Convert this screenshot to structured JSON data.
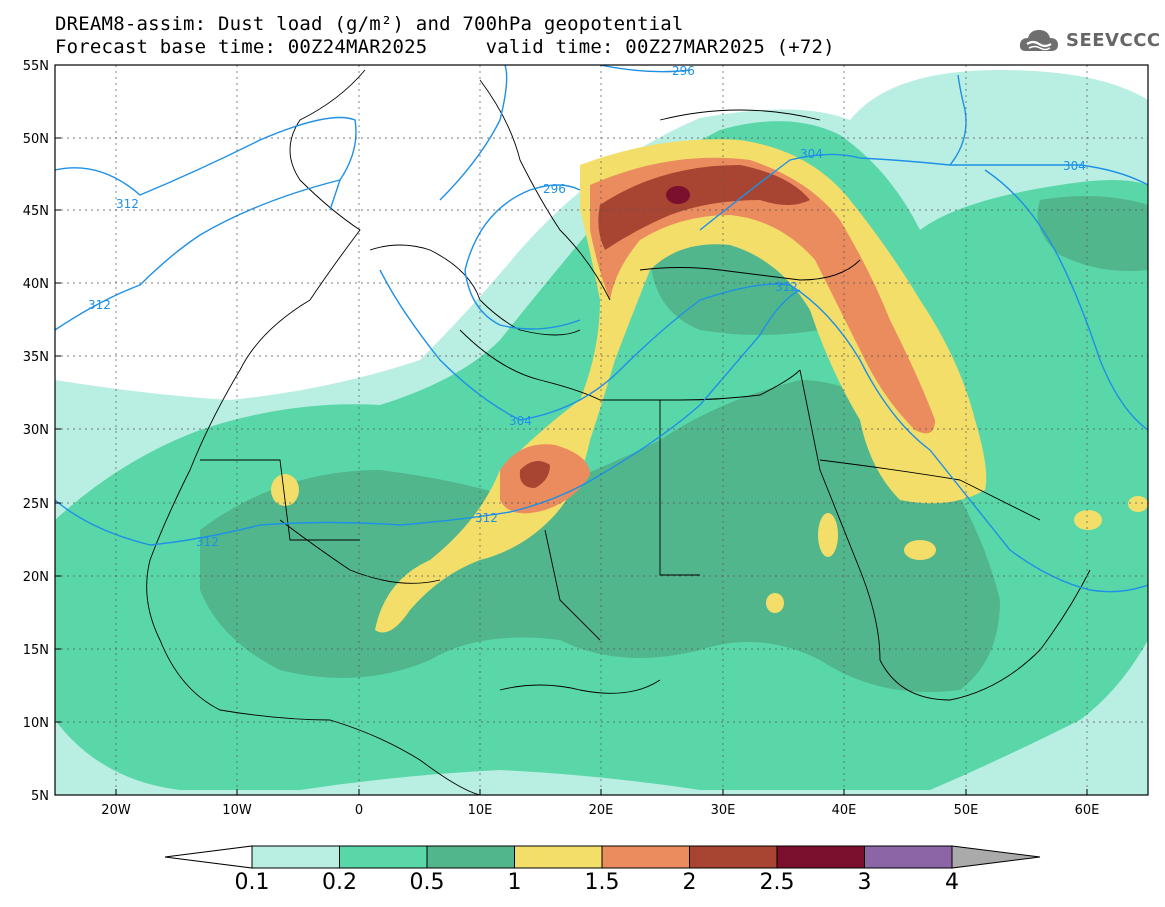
{
  "title": {
    "line1": "DREAM8-assim: Dust load (g/m²) and 700hPa geopotential",
    "line2": "Forecast base time: 00Z24MAR2025     valid time: 00Z27MAR2025 (+72)"
  },
  "logo": {
    "text": "SEEVCCC",
    "icon": "cloud-logo-icon"
  },
  "map": {
    "lon_range": [
      -25,
      65
    ],
    "lat_range": [
      5,
      55
    ],
    "lat_labels": [
      "55N",
      "50N",
      "45N",
      "40N",
      "35N",
      "30N",
      "25N",
      "20N",
      "15N",
      "10N",
      "5N"
    ],
    "lon_labels": [
      "20W",
      "10W",
      "0",
      "10E",
      "20E",
      "30E",
      "40E",
      "50E",
      "60E"
    ],
    "contour_labels": [
      "296",
      "304",
      "312",
      "312",
      "312",
      "304",
      "296",
      "312",
      "312",
      "304"
    ],
    "contour_color": "#1e90e6"
  },
  "colorbar": {
    "labels": [
      "0.1",
      "0.2",
      "0.5",
      "1",
      "1.5",
      "2",
      "2.5",
      "3",
      "4"
    ],
    "colors": [
      "#ffffff",
      "#b9eee2",
      "#5ad7a8",
      "#52b68c",
      "#f3de6a",
      "#eb8c5e",
      "#a84432",
      "#7b0f2e",
      "#8b65a5",
      "#aaaaaa"
    ]
  }
}
